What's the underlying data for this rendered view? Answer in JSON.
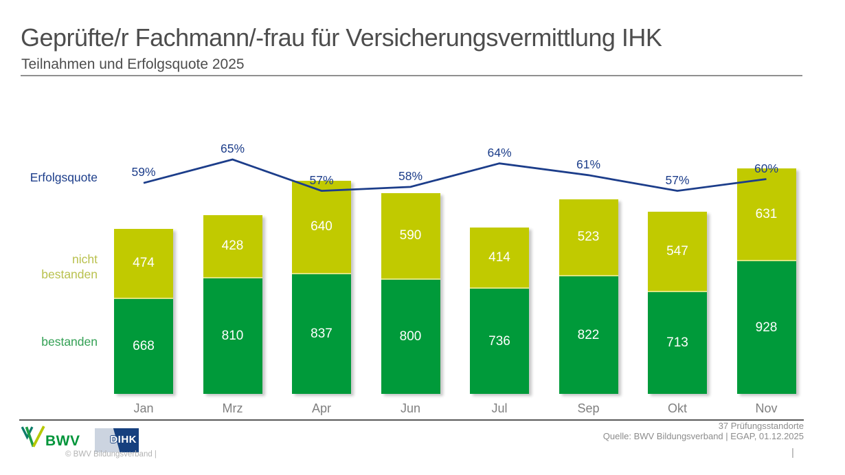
{
  "header": {
    "title": "Geprüfte/r Fachmann/-frau für Versicherungsvermittlung IHK",
    "subtitle": "Teilnahmen und Erfolgsquote 2025"
  },
  "chart_data": {
    "type": "bar",
    "subtype": "stacked-column-with-line",
    "title": "Geprüfte/r Fachmann/-frau für Versicherungsvermittlung IHK",
    "subtitle": "Teilnahmen und Erfolgsquote 2025",
    "categories": [
      "Jan",
      "Mrz",
      "Apr",
      "Jun",
      "Jul",
      "Sep",
      "Okt",
      "Nov"
    ],
    "series": [
      {
        "name": "bestanden",
        "role": "bar-bottom",
        "color": "#009a3a",
        "values": [
          668,
          810,
          837,
          800,
          736,
          822,
          713,
          928
        ]
      },
      {
        "name": "nicht bestanden",
        "role": "bar-top",
        "color": "#c1ca00",
        "values": [
          474,
          428,
          640,
          590,
          414,
          523,
          547,
          631
        ]
      },
      {
        "name": "Erfolgsquote",
        "role": "line",
        "color": "#1c3d8a",
        "unit": "%",
        "values": [
          59,
          65,
          57,
          58,
          64,
          61,
          57,
          60
        ]
      }
    ],
    "legend": {
      "erfolgsquote": "Erfolgsquote",
      "nicht_bestanden": "nicht bestanden",
      "bestanden": "bestanden"
    },
    "legend_position": "left",
    "grid": false,
    "ylim": [
      0,
      1600
    ]
  },
  "footer": {
    "standorte": "37 Prüfungsstandorte",
    "quelle": "Quelle: BWV Bildungsverband | EGAP, 01.12.2025",
    "pipe": "|",
    "copyright": "© BWV Bildungsverband |",
    "bwv_label": "BWV",
    "dihk_label": "DIHK"
  },
  "colors": {
    "bar_green": "#009a3a",
    "bar_lime": "#c1ca00",
    "segment_separator": "#dfe57f",
    "line_navy": "#1c3d8a",
    "title_gray": "#4d4d4d",
    "axis_gray": "#7f7f7f"
  }
}
